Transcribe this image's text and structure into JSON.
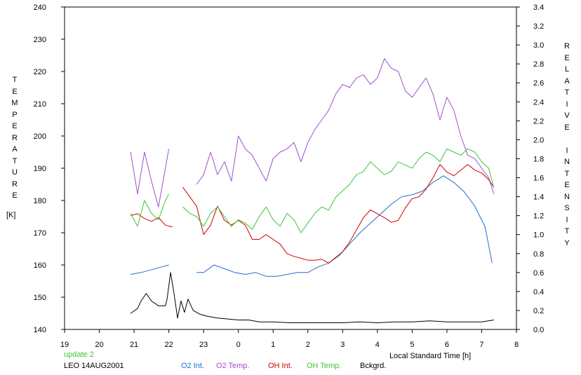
{
  "chart_data": {
    "type": "line",
    "ylabel_left": "TEMPERATURE",
    "ylabel_left_unit": "[K]",
    "ylabel_right": "RELATIVE INTENSITY",
    "xlabel": "Local Standard Time [h]",
    "status_text": "update 2",
    "station_text": "LEO 14AUG2001",
    "x_tick_labels": [
      "19",
      "20",
      "21",
      "22",
      "23",
      "0",
      "1",
      "2",
      "3",
      "4",
      "5",
      "6",
      "7",
      "8"
    ],
    "xlim": [
      19,
      32
    ],
    "ylim_left": [
      140,
      240
    ],
    "y_left_ticks": [
      140,
      150,
      160,
      170,
      180,
      190,
      200,
      210,
      220,
      230,
      240
    ],
    "ylim_right": [
      0.0,
      3.4
    ],
    "y_right_ticks": [
      "0.0",
      "0.2",
      "0.4",
      "0.6",
      "0.8",
      "1.0",
      "1.2",
      "1.4",
      "1.6",
      "1.8",
      "2.0",
      "2.2",
      "2.4",
      "2.6",
      "2.8",
      "3.0",
      "3.2",
      "3.4"
    ],
    "grid": false,
    "legend_position": "bottom",
    "series": [
      {
        "name": "O2 Int.",
        "color": "#1f6fcf",
        "axis": "right",
        "segments": [
          {
            "x": [
              20.9,
              21.2,
              21.5,
              21.8,
              22.0
            ],
            "y": [
              0.58,
              0.6,
              0.63,
              0.66,
              0.68
            ]
          },
          {
            "x": [
              22.8,
              23.0,
              23.3,
              23.6,
              23.9,
              24.2,
              24.5,
              24.8,
              25.1,
              25.4,
              25.7,
              26.0,
              26.3,
              26.6,
              26.9,
              27.2,
              27.5,
              27.8,
              28.1,
              28.4,
              28.7,
              29.0,
              29.3,
              29.6,
              29.9,
              30.2,
              30.5,
              30.8,
              31.1,
              31.3
            ],
            "y": [
              0.6,
              0.6,
              0.68,
              0.64,
              0.6,
              0.58,
              0.6,
              0.56,
              0.56,
              0.58,
              0.6,
              0.6,
              0.66,
              0.7,
              0.78,
              0.9,
              1.02,
              1.12,
              1.22,
              1.32,
              1.4,
              1.42,
              1.46,
              1.55,
              1.62,
              1.55,
              1.45,
              1.3,
              1.08,
              0.7
            ]
          }
        ]
      },
      {
        "name": "O2 Temp.",
        "color": "#a04fd0",
        "axis": "left",
        "segments": [
          {
            "x": [
              20.9,
              21.1,
              21.3,
              21.5,
              21.7,
              21.9,
              22.0
            ],
            "y": [
              195,
              182,
              195,
              186,
              178,
              190,
              196
            ]
          },
          {
            "x": [
              22.8,
              23.0,
              23.2,
              23.4,
              23.6,
              23.8,
              24.0,
              24.2,
              24.4,
              24.6,
              24.8,
              25.0,
              25.2,
              25.4,
              25.6,
              25.8,
              26.0,
              26.2,
              26.4,
              26.6,
              26.8,
              27.0,
              27.2,
              27.4,
              27.6,
              27.8,
              28.0,
              28.2,
              28.4,
              28.6,
              28.8,
              29.0,
              29.2,
              29.4,
              29.6,
              29.8,
              30.0,
              30.2,
              30.4,
              30.6,
              30.8,
              31.0,
              31.2,
              31.35
            ],
            "y": [
              185,
              188,
              195,
              188,
              192,
              186,
              200,
              196,
              194,
              190,
              186,
              193,
              195,
              196,
              198,
              192,
              198,
              202,
              205,
              208,
              213,
              216,
              215,
              218,
              219,
              216,
              218,
              224,
              221,
              220,
              214,
              212,
              215,
              218,
              213,
              205,
              212,
              208,
              200,
              194,
              193,
              190,
              187,
              182
            ]
          }
        ]
      },
      {
        "name": "OH Int.",
        "color": "#d00000",
        "axis": "right",
        "segments": [
          {
            "x": [
              20.9,
              21.1,
              21.3,
              21.5,
              21.7,
              21.9,
              22.1
            ],
            "y": [
              1.2,
              1.22,
              1.17,
              1.14,
              1.18,
              1.1,
              1.08
            ]
          },
          {
            "x": [
              22.4,
              22.6,
              22.8,
              23.0,
              23.2,
              23.4,
              23.6,
              23.8,
              24.0,
              24.2,
              24.4,
              24.6,
              24.8,
              25.0,
              25.2,
              25.4,
              25.6,
              25.8,
              26.0,
              26.2,
              26.4,
              26.6,
              26.8,
              27.0,
              27.2,
              27.4,
              27.6,
              27.8,
              28.0,
              28.2,
              28.4,
              28.6,
              28.8,
              29.0,
              29.2,
              29.4,
              29.6,
              29.8,
              30.0,
              30.2,
              30.4,
              30.6,
              30.8,
              31.0,
              31.2,
              31.35
            ],
            "y": [
              1.5,
              1.4,
              1.3,
              1.0,
              1.1,
              1.3,
              1.15,
              1.1,
              1.15,
              1.1,
              0.95,
              0.95,
              1.0,
              0.95,
              0.9,
              0.8,
              0.77,
              0.75,
              0.73,
              0.73,
              0.74,
              0.7,
              0.76,
              0.82,
              0.92,
              1.05,
              1.18,
              1.26,
              1.22,
              1.18,
              1.13,
              1.15,
              1.28,
              1.38,
              1.4,
              1.48,
              1.6,
              1.74,
              1.66,
              1.62,
              1.68,
              1.74,
              1.68,
              1.65,
              1.58,
              1.5
            ]
          }
        ]
      },
      {
        "name": "OH Temp.",
        "color": "#3cc43c",
        "axis": "left",
        "segments": [
          {
            "x": [
              20.9,
              21.1,
              21.3,
              21.5,
              21.7,
              21.9,
              22.0
            ],
            "y": [
              176,
              172,
              180,
              176,
              174,
              180,
              182
            ]
          },
          {
            "x": [
              22.4,
              22.6,
              22.8,
              23.0,
              23.2,
              23.4,
              23.6,
              23.8,
              24.0,
              24.2,
              24.4,
              24.6,
              24.8,
              25.0,
              25.2,
              25.4,
              25.6,
              25.8,
              26.0,
              26.2,
              26.4,
              26.6,
              26.8,
              27.0,
              27.2,
              27.4,
              27.6,
              27.8,
              28.0,
              28.2,
              28.4,
              28.6,
              28.8,
              29.0,
              29.2,
              29.4,
              29.6,
              29.8,
              30.0,
              30.2,
              30.4,
              30.6,
              30.8,
              31.0,
              31.2,
              31.35
            ],
            "y": [
              178,
              176,
              175,
              172,
              176,
              178,
              175,
              172,
              174,
              173,
              171,
              175,
              178,
              174,
              172,
              176,
              174,
              170,
              173,
              176,
              178,
              177,
              181,
              183,
              185,
              188,
              189,
              192,
              190,
              188,
              189,
              192,
              191,
              190,
              193,
              195,
              194,
              192,
              196,
              195,
              194,
              196,
              195,
              192,
              190,
              184
            ]
          }
        ]
      },
      {
        "name": "Bckgrd.",
        "color": "#000000",
        "axis": "right",
        "segments": [
          {
            "x": [
              20.9,
              21.1,
              21.2,
              21.35,
              21.5,
              21.7,
              21.9,
              21.95,
              22.05,
              22.15,
              22.25,
              22.35,
              22.45,
              22.55,
              22.7,
              22.9,
              23.1,
              23.4,
              23.7,
              24.0,
              24.3,
              24.6,
              25.0,
              25.5,
              26.0,
              26.5,
              27.0,
              27.5,
              28.0,
              28.5,
              29.0,
              29.5,
              30.0,
              30.5,
              31.0,
              31.35
            ],
            "y": [
              0.17,
              0.22,
              0.3,
              0.38,
              0.3,
              0.25,
              0.25,
              0.32,
              0.6,
              0.38,
              0.12,
              0.3,
              0.18,
              0.32,
              0.2,
              0.16,
              0.14,
              0.12,
              0.11,
              0.1,
              0.1,
              0.08,
              0.08,
              0.07,
              0.07,
              0.07,
              0.07,
              0.08,
              0.07,
              0.08,
              0.08,
              0.09,
              0.08,
              0.08,
              0.08,
              0.1
            ]
          }
        ]
      }
    ]
  }
}
